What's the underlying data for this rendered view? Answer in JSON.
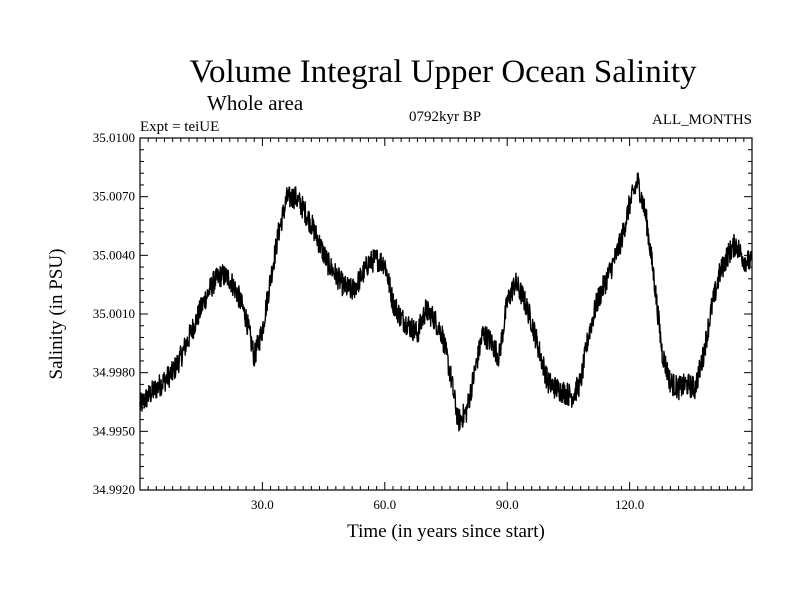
{
  "chart_data": {
    "type": "line",
    "title": "Volume Integral Upper Ocean Salinity",
    "subtitle": "Whole area",
    "experiment": "Expt = teiUE",
    "period": "0792kyr BP",
    "months": "ALL_MONTHS",
    "xlabel": "Time (in years since start)",
    "ylabel": "Salinity (in PSU)",
    "xlim": [
      0,
      150
    ],
    "ylim": [
      34.992,
      35.01
    ],
    "x_ticks": [
      30,
      60,
      90,
      120
    ],
    "x_tick_labels": [
      "30.0",
      "60.0",
      "90.0",
      "120.0"
    ],
    "y_ticks": [
      34.992,
      34.995,
      34.998,
      35.001,
      35.004,
      35.007,
      35.01
    ],
    "y_tick_labels": [
      "34.9920",
      "34.9950",
      "34.9980",
      "35.0010",
      "35.0040",
      "35.0070",
      "35.0100"
    ],
    "series": [
      {
        "name": "salinity",
        "noise_amplitude": 0.0006,
        "x": [
          0,
          2,
          4,
          6,
          8,
          10,
          12,
          14,
          16,
          18,
          20,
          22,
          24,
          26,
          28,
          30,
          32,
          34,
          36,
          38,
          40,
          42,
          44,
          46,
          48,
          50,
          52,
          54,
          56,
          58,
          60,
          62,
          64,
          66,
          68,
          70,
          72,
          74,
          76,
          78,
          80,
          82,
          84,
          86,
          88,
          90,
          92,
          94,
          96,
          98,
          100,
          102,
          104,
          106,
          108,
          110,
          112,
          114,
          116,
          118,
          120,
          122,
          124,
          126,
          128,
          130,
          132,
          134,
          136,
          138,
          140,
          142,
          144,
          146,
          148,
          150
        ],
        "values": [
          34.9963,
          34.9968,
          34.9972,
          34.9976,
          34.998,
          34.9988,
          34.9998,
          35.0008,
          35.0018,
          35.0026,
          35.003,
          35.0028,
          35.002,
          35.0008,
          34.9988,
          35.0002,
          35.0028,
          35.0052,
          35.0069,
          35.007,
          35.0064,
          35.0056,
          35.0046,
          35.0036,
          35.003,
          35.0024,
          35.0022,
          35.0028,
          35.0036,
          35.0038,
          35.0036,
          35.0016,
          35.0008,
          35.0004,
          35.0,
          35.0012,
          35.0008,
          35.0,
          34.998,
          34.9955,
          34.996,
          34.998,
          35.0,
          34.9996,
          34.9988,
          35.0016,
          35.0026,
          35.0018,
          35.0006,
          34.999,
          34.9975,
          34.9972,
          34.997,
          34.9968,
          34.9975,
          35.0,
          35.0016,
          35.0026,
          35.0036,
          35.0048,
          35.0066,
          35.0078,
          35.006,
          35.0028,
          34.999,
          34.9975,
          34.9972,
          34.9974,
          34.9972,
          34.9988,
          35.0012,
          35.003,
          35.004,
          35.0046,
          35.0038,
          35.0036
        ]
      }
    ]
  }
}
